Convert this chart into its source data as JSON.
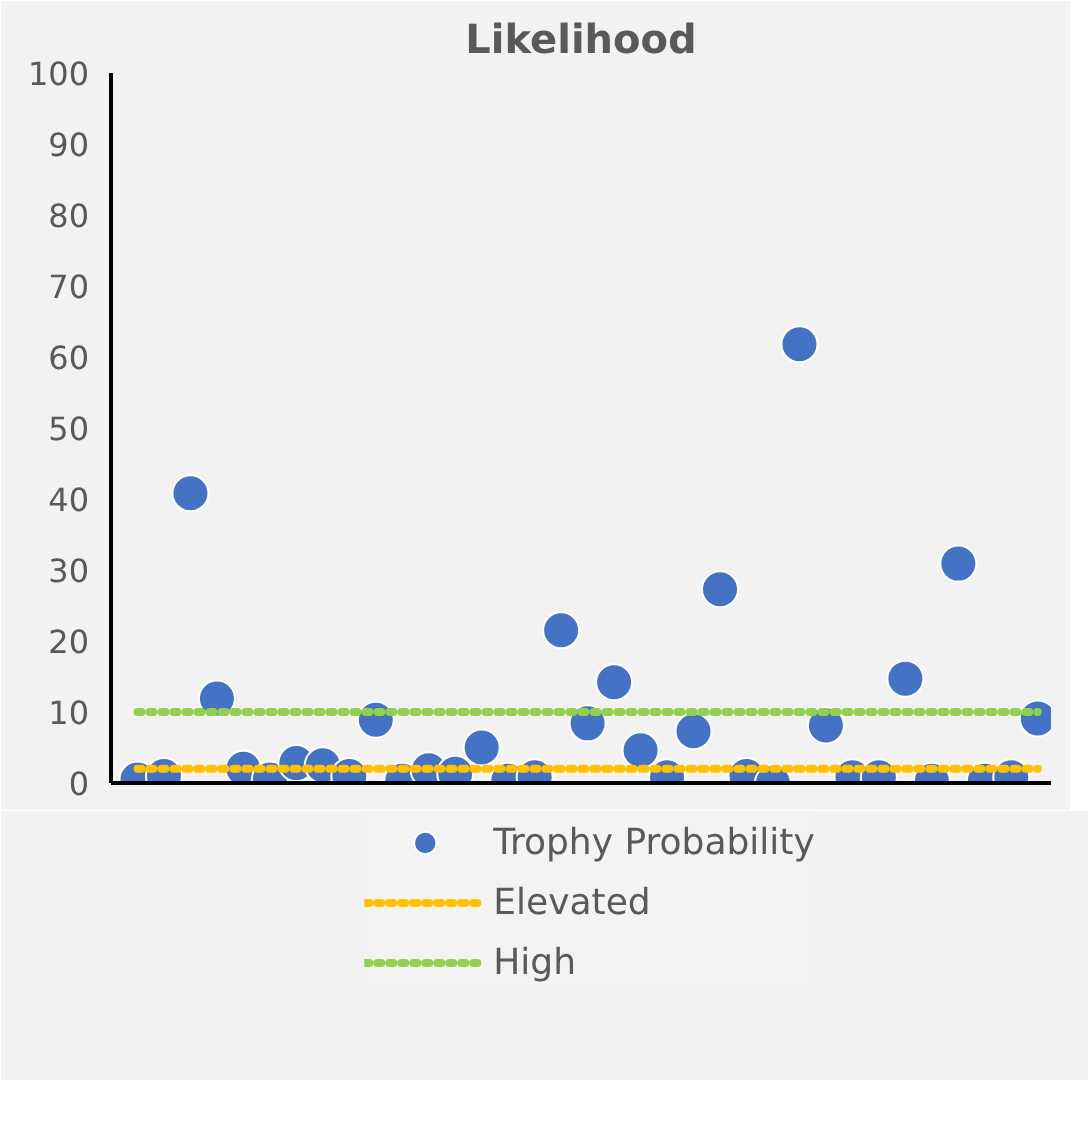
{
  "chart_data": {
    "type": "scatter",
    "title": "Likelihood",
    "categories": [
      null,
      null,
      null,
      null,
      null,
      null,
      null,
      null,
      null,
      null,
      null,
      null,
      null,
      null,
      null,
      null,
      null,
      null,
      null,
      null,
      null,
      null,
      null,
      null,
      null,
      null,
      null,
      null,
      null,
      null,
      null,
      null,
      null,
      null,
      null
    ],
    "series": [
      {
        "name": "Trophy Probability",
        "color": "#4472c4",
        "marker": "circle",
        "values": [
          0.5,
          1,
          40.8,
          11.9,
          2,
          0.5,
          2.8,
          2.5,
          1,
          8.9,
          0.3,
          1.8,
          1.3,
          5,
          0.3,
          0.8,
          21.5,
          8.4,
          14.2,
          4.6,
          0.8,
          7.3,
          27.3,
          1,
          0,
          61.8,
          8.1,
          0.8,
          0.8,
          14.7,
          0.3,
          30.9,
          0.3,
          0.8,
          9.1
        ]
      },
      {
        "name": "Elevated",
        "color": "#ffc000",
        "type": "line",
        "line_style": "dotted",
        "values": [
          2,
          2,
          2,
          2,
          2,
          2,
          2,
          2,
          2,
          2,
          2,
          2,
          2,
          2,
          2,
          2,
          2,
          2,
          2,
          2,
          2,
          2,
          2,
          2,
          2,
          2,
          2,
          2,
          2,
          2,
          2,
          2,
          2,
          2,
          2
        ]
      },
      {
        "name": "High",
        "color": "#92d050",
        "type": "line",
        "line_style": "dotted",
        "values": [
          10,
          10,
          10,
          10,
          10,
          10,
          10,
          10,
          10,
          10,
          10,
          10,
          10,
          10,
          10,
          10,
          10,
          10,
          10,
          10,
          10,
          10,
          10,
          10,
          10,
          10,
          10,
          10,
          10,
          10,
          10,
          10,
          10,
          10,
          10
        ]
      }
    ],
    "ylim": [
      0,
      100
    ],
    "yticks": [
      0,
      10,
      20,
      30,
      40,
      50,
      60,
      70,
      80,
      90,
      100
    ],
    "grid": false,
    "legend": "bottom",
    "tick_labels": "y"
  }
}
